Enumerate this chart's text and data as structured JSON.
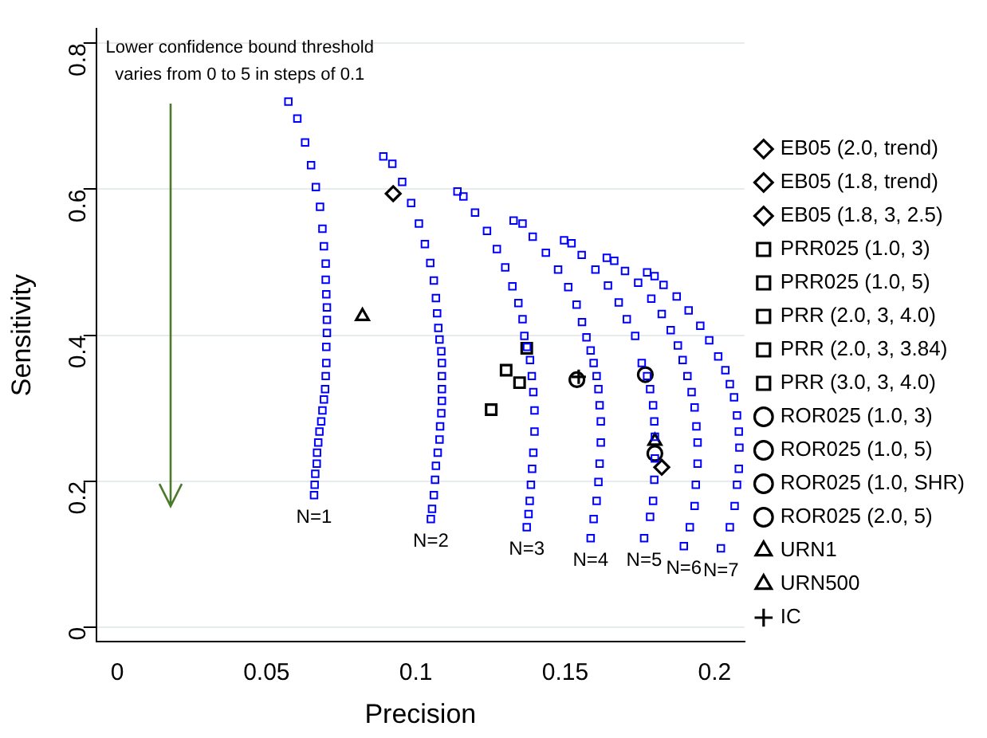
{
  "chart_data": {
    "type": "scatter",
    "xlabel": "Precision",
    "ylabel": "Sensitivity",
    "xlim": [
      -0.007,
      0.21
    ],
    "ylim": [
      -0.02,
      0.82
    ],
    "xticks": [
      0,
      0.05,
      0.1,
      0.15,
      0.2
    ],
    "yticks": [
      0,
      0.2,
      0.4,
      0.6,
      0.8
    ],
    "grid": "y",
    "legend": "right",
    "marker": "square",
    "annotations": [
      "Lower confidence bound threshold\nvaries from 0 to 5 in steps of 0.1",
      {
        "text": "N=1",
        "x": 0.0659,
        "y": 0.181
      },
      {
        "text": "N=2",
        "x": 0.105,
        "y": 0.148
      },
      {
        "text": "N=3",
        "x": 0.1371,
        "y": 0.137
      },
      {
        "text": "N=4",
        "x": 0.1585,
        "y": 0.122
      },
      {
        "text": "N=5",
        "x": 0.1764,
        "y": 0.122
      },
      {
        "text": "N=6",
        "x": 0.1897,
        "y": 0.111
      },
      {
        "text": "N=7",
        "x": 0.2021,
        "y": 0.108
      }
    ],
    "series": [
      {
        "color": "#0000ff",
        "x": [
          0.0573,
          0.0603,
          0.0629,
          0.0649,
          0.0665,
          0.0679,
          0.0687,
          0.0692,
          0.0698,
          0.0698,
          0.07,
          0.0702,
          0.0702,
          0.0702,
          0.07,
          0.07,
          0.0698,
          0.0696,
          0.0692,
          0.0687,
          0.0683,
          0.0677,
          0.0673,
          0.0669,
          0.0668,
          0.0663,
          0.0661,
          0.0659
        ],
        "values": [
          0.72,
          0.697,
          0.664,
          0.633,
          0.603,
          0.576,
          0.546,
          0.522,
          0.498,
          0.476,
          0.456,
          0.438,
          0.421,
          0.403,
          0.384,
          0.362,
          0.344,
          0.326,
          0.312,
          0.297,
          0.282,
          0.268,
          0.253,
          0.239,
          0.224,
          0.21,
          0.195,
          0.181
        ]
      },
      {
        "color": "#0000ff",
        "x": [
          0.0891,
          0.0921,
          0.0954,
          0.0984,
          0.101,
          0.103,
          0.1048,
          0.106,
          0.1067,
          0.1071,
          0.1075,
          0.1079,
          0.1085,
          0.1087,
          0.1087,
          0.1087,
          0.1087,
          0.1085,
          0.1081,
          0.1079,
          0.1073,
          0.1067,
          0.1064,
          0.106,
          0.1054,
          0.105
        ],
        "values": [
          0.645,
          0.635,
          0.61,
          0.581,
          0.553,
          0.525,
          0.499,
          0.475,
          0.451,
          0.43,
          0.41,
          0.394,
          0.378,
          0.362,
          0.344,
          0.326,
          0.31,
          0.293,
          0.275,
          0.257,
          0.239,
          0.221,
          0.202,
          0.181,
          0.162,
          0.148
        ]
      },
      {
        "color": "#0000ff",
        "x": [
          0.1139,
          0.1159,
          0.1198,
          0.1238,
          0.1271,
          0.1299,
          0.1323,
          0.1343,
          0.1357,
          0.1363,
          0.1372,
          0.1382,
          0.1388,
          0.1393,
          0.1397,
          0.1397,
          0.1393,
          0.1389,
          0.1385,
          0.1381,
          0.1377,
          0.1371
        ],
        "values": [
          0.597,
          0.59,
          0.568,
          0.543,
          0.518,
          0.493,
          0.467,
          0.444,
          0.422,
          0.399,
          0.384,
          0.366,
          0.344,
          0.322,
          0.297,
          0.268,
          0.239,
          0.217,
          0.195,
          0.173,
          0.155,
          0.137
        ]
      },
      {
        "color": "#0000ff",
        "x": [
          0.1327,
          0.1357,
          0.1391,
          0.1435,
          0.1476,
          0.151,
          0.1538,
          0.1556,
          0.1571,
          0.1585,
          0.1595,
          0.1605,
          0.1611,
          0.1615,
          0.1619,
          0.1619,
          0.1615,
          0.1611,
          0.1605,
          0.1595,
          0.1585
        ],
        "values": [
          0.557,
          0.553,
          0.535,
          0.513,
          0.49,
          0.466,
          0.442,
          0.418,
          0.397,
          0.379,
          0.362,
          0.344,
          0.326,
          0.304,
          0.282,
          0.253,
          0.224,
          0.199,
          0.173,
          0.148,
          0.122
        ]
      },
      {
        "color": "#0000ff",
        "x": [
          0.1496,
          0.1521,
          0.1555,
          0.1601,
          0.1643,
          0.1679,
          0.1706,
          0.1734,
          0.1756,
          0.1774,
          0.1784,
          0.1794,
          0.1798,
          0.18,
          0.18,
          0.1798,
          0.1794,
          0.1784,
          0.1764
        ],
        "values": [
          0.53,
          0.526,
          0.51,
          0.49,
          0.468,
          0.445,
          0.422,
          0.399,
          0.362,
          0.344,
          0.326,
          0.304,
          0.282,
          0.261,
          0.231,
          0.202,
          0.173,
          0.151,
          0.122
        ]
      },
      {
        "color": "#0000ff",
        "x": [
          0.1639,
          0.1664,
          0.17,
          0.1744,
          0.1788,
          0.1823,
          0.1853,
          0.1877,
          0.1893,
          0.1909,
          0.1923,
          0.1933,
          0.1939,
          0.1943,
          0.1943,
          0.1937,
          0.1933,
          0.1917,
          0.1897
        ],
        "values": [
          0.506,
          0.502,
          0.488,
          0.472,
          0.45,
          0.429,
          0.407,
          0.386,
          0.366,
          0.344,
          0.322,
          0.301,
          0.275,
          0.253,
          0.224,
          0.195,
          0.166,
          0.137,
          0.111
        ]
      },
      {
        "color": "#0000ff",
        "x": [
          0.1774,
          0.1799,
          0.1829,
          0.1873,
          0.1913,
          0.1952,
          0.1982,
          0.2012,
          0.2036,
          0.2051,
          0.2065,
          0.2075,
          0.2081,
          0.2083,
          0.2081,
          0.2075,
          0.2067,
          0.2051,
          0.2021
        ],
        "values": [
          0.486,
          0.481,
          0.469,
          0.453,
          0.434,
          0.413,
          0.393,
          0.371,
          0.352,
          0.333,
          0.315,
          0.29,
          0.268,
          0.246,
          0.217,
          0.195,
          0.166,
          0.137,
          0.108
        ]
      },
      {
        "name": "EB05 (2.0, trend)",
        "color": "#000000",
        "marker": "diamond",
        "x": [
          null
        ],
        "values": [
          null
        ]
      },
      {
        "name": "EB05 (1.8, trend)",
        "color": "#000000",
        "marker": "diamond",
        "x": [
          0.0924
        ],
        "values": [
          0.594
        ]
      },
      {
        "name": "EB05 (1.8, 3, 2.5)",
        "color": "#000000",
        "marker": "diamond",
        "x": [
          0.1823
        ],
        "values": [
          0.219
        ]
      },
      {
        "name": "PRR025 (1.0, 3)",
        "color": "#000000",
        "marker": "square",
        "x": [
          null
        ],
        "values": [
          null
        ]
      },
      {
        "name": "PRR025 (1.0, 5)",
        "color": "#000000",
        "marker": "square",
        "x": [
          0.1371
        ],
        "values": [
          0.382
        ]
      },
      {
        "name": "PRR (2.0, 3, 4.0)",
        "color": "#000000",
        "marker": "square",
        "x": [
          0.1347
        ],
        "values": [
          0.335
        ]
      },
      {
        "name": "PRR (2.0, 3, 3.84)",
        "color": "#000000",
        "marker": "square",
        "x": [
          0.1302
        ],
        "values": [
          0.352
        ]
      },
      {
        "name": "PRR (3.0, 3, 4.0)",
        "color": "#000000",
        "marker": "square",
        "x": [
          0.1252
        ],
        "values": [
          0.298
        ]
      },
      {
        "name": "ROR025 (1.0, 3)",
        "color": "#000000",
        "marker": "circle",
        "x": [
          0.18
        ],
        "values": [
          0.238
        ]
      },
      {
        "name": "ROR025 (1.0, 5)",
        "color": "#000000",
        "marker": "circle",
        "x": [
          0.1768
        ],
        "values": [
          0.346
        ]
      },
      {
        "name": "ROR025 (1.0, SHR)",
        "color": "#000000",
        "marker": "circle",
        "x": [
          null
        ],
        "values": [
          null
        ]
      },
      {
        "name": "ROR025 (2.0, 5)",
        "color": "#000000",
        "marker": "circle",
        "x": [
          0.1539
        ],
        "values": [
          0.339
        ]
      },
      {
        "name": "URN1",
        "color": "#000000",
        "marker": "triangle",
        "x": [
          0.0821
        ],
        "values": [
          0.426
        ]
      },
      {
        "name": "URN500",
        "color": "#000000",
        "marker": "triangle",
        "x": [
          0.18
        ],
        "values": [
          0.255
        ]
      },
      {
        "name": "IC",
        "color": "#000000",
        "marker": "cross",
        "x": [
          0.1545
        ],
        "values": [
          0.343
        ]
      }
    ]
  }
}
